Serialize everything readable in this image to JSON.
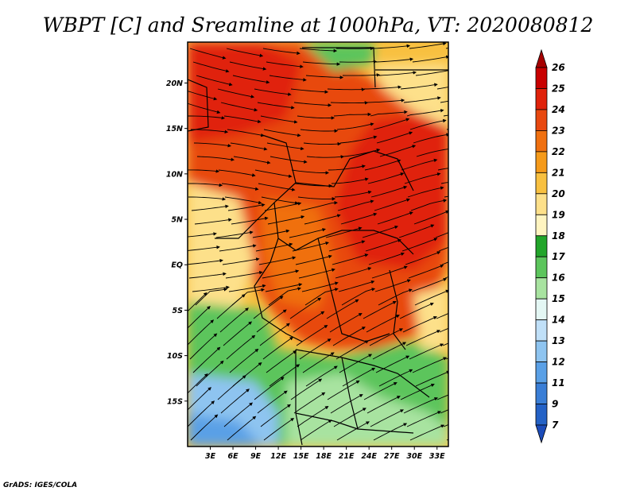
{
  "title": "WBPT [C] and Sreamline at 1000hPa, VT: 2020080812",
  "credit": "GrADS: IGES/COLA",
  "map": {
    "lat_labels": [
      "20N",
      "15N",
      "10N",
      "5N",
      "EQ",
      "5S",
      "10S",
      "15S"
    ],
    "lon_labels": [
      "3E",
      "6E",
      "9E",
      "12E",
      "15E",
      "18E",
      "21E",
      "24E",
      "27E",
      "30E",
      "33E"
    ],
    "lat_range": [
      -20,
      24.5
    ],
    "lon_range": [
      0,
      34.5
    ]
  },
  "colorbar": {
    "labels": [
      "26",
      "25",
      "24",
      "23",
      "22",
      "21",
      "20",
      "19",
      "18",
      "17",
      "16",
      "15",
      "14",
      "13",
      "12",
      "11",
      "9",
      "7"
    ],
    "colors": [
      "#a50000",
      "#c80000",
      "#e0220a",
      "#e8480f",
      "#f07010",
      "#f59a1a",
      "#f8c040",
      "#fde08a",
      "#fff4c0",
      "#22a52a",
      "#5cc55c",
      "#a8e3a0",
      "#e4f7f4",
      "#c0e0f8",
      "#8ec4f0",
      "#5aa0e6",
      "#3a7ed6",
      "#2462c6",
      "#1c4cba"
    ]
  }
}
